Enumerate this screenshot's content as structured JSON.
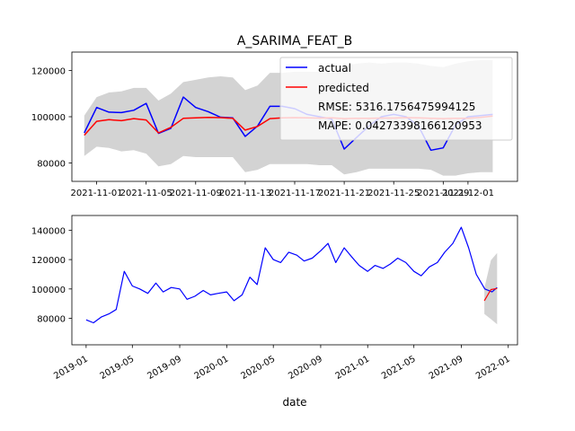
{
  "figure": {
    "title": "A_SARIMA_FEAT_B"
  },
  "chart_data": [
    {
      "type": "line",
      "title": "A_SARIMA_FEAT_B",
      "xlabel": "",
      "ylabel": "",
      "x_range": [
        "2021-10-30",
        "2021-12-05"
      ],
      "ylim": [
        72000,
        128000
      ],
      "x_ticks": [
        "2021-11-01",
        "2021-11-05",
        "2021-11-09",
        "2021-11-13",
        "2021-11-17",
        "2021-11-21",
        "2021-11-25",
        "2021-11-29",
        "2021-12-01"
      ],
      "y_ticks": [
        80000,
        100000,
        120000
      ],
      "y_tick_labels": [
        "80000",
        "100000",
        "120000"
      ],
      "grid": false,
      "legend": {
        "placement": "top-right",
        "entries": [
          {
            "label": "actual",
            "color": "#0000ff"
          },
          {
            "label": "predicted",
            "color": "#ff0000"
          },
          {
            "label": "RMSE: 5316.1756475994125",
            "color": ""
          },
          {
            "label": "MAPE: 0.042733981661209​53",
            "color": ""
          }
        ]
      },
      "x": [
        "2021-10-31",
        "2021-11-01",
        "2021-11-02",
        "2021-11-03",
        "2021-11-04",
        "2021-11-05",
        "2021-11-06",
        "2021-11-07",
        "2021-11-08",
        "2021-11-09",
        "2021-11-10",
        "2021-11-11",
        "2021-11-12",
        "2021-11-13",
        "2021-11-14",
        "2021-11-15",
        "2021-11-16",
        "2021-11-17",
        "2021-11-18",
        "2021-11-19",
        "2021-11-20",
        "2021-11-21",
        "2021-11-22",
        "2021-11-23",
        "2021-11-24",
        "2021-11-25",
        "2021-11-26",
        "2021-11-27",
        "2021-11-28",
        "2021-11-29",
        "2021-11-30",
        "2021-12-01",
        "2021-12-02",
        "2021-12-03"
      ],
      "series": [
        {
          "name": "actual",
          "color": "#0000ff",
          "values": [
            93000,
            104000,
            102000,
            101800,
            102800,
            105800,
            92800,
            95000,
            108500,
            104000,
            102200,
            99800,
            99500,
            91500,
            96000,
            104500,
            104500,
            103500,
            101000,
            100000,
            99000,
            86000,
            91000,
            96000,
            100000,
            101000,
            100000,
            96000,
            85500,
            86500,
            96500,
            100000,
            100500,
            101000
          ]
        },
        {
          "name": "predicted",
          "color": "#ff0000",
          "values": [
            92000,
            98000,
            98700,
            98300,
            99200,
            98600,
            93000,
            95400,
            99300,
            99500,
            99700,
            99600,
            99300,
            94200,
            95800,
            99200,
            99500,
            99600,
            99500,
            99400,
            99500,
            99200,
            99300,
            99300,
            99400,
            99400,
            99600,
            99500,
            99300,
            99200,
            99300,
            99300,
            99700,
            100300
          ]
        }
      ],
      "band": {
        "color": "#d3d3d3",
        "lower": [
          83000,
          87000,
          86500,
          85000,
          85500,
          84000,
          78500,
          79500,
          83000,
          82500,
          82500,
          82500,
          82500,
          76000,
          77000,
          79500,
          79500,
          79500,
          79500,
          79000,
          79000,
          75000,
          76000,
          77500,
          77500,
          77500,
          77500,
          77500,
          77000,
          74500,
          74500,
          75500,
          76000,
          76000
        ],
        "upper": [
          100500,
          108500,
          110500,
          111000,
          112500,
          112500,
          107000,
          110000,
          115000,
          116000,
          117000,
          117500,
          117000,
          111500,
          113500,
          119000,
          119000,
          119500,
          119500,
          119500,
          119000,
          122000,
          123000,
          123500,
          123000,
          123500,
          123500,
          123000,
          122000,
          121500,
          123000,
          124000,
          124500,
          124500
        ]
      }
    },
    {
      "type": "line",
      "title": "",
      "xlabel": "date",
      "ylabel": "",
      "x_range": [
        "2018-11-25",
        "2022-01-25"
      ],
      "ylim": [
        62000,
        150000
      ],
      "x_ticks": [
        "2019-01",
        "2019-05",
        "2019-09",
        "2020-01",
        "2020-05",
        "2020-09",
        "2021-01",
        "2021-05",
        "2021-09",
        "2022-01"
      ],
      "y_ticks": [
        80000,
        100000,
        120000,
        140000
      ],
      "y_tick_labels": [
        "80000",
        "100000",
        "120000",
        "140000"
      ],
      "grid": false,
      "series": [
        {
          "name": "actual",
          "color": "#0000ff",
          "x": [
            "2019-01-01",
            "2019-01-20",
            "2019-02-10",
            "2019-03-01",
            "2019-03-20",
            "2019-04-10",
            "2019-05-01",
            "2019-05-20",
            "2019-06-10",
            "2019-07-01",
            "2019-07-20",
            "2019-08-10",
            "2019-09-01",
            "2019-09-20",
            "2019-10-10",
            "2019-11-01",
            "2019-11-20",
            "2019-12-10",
            "2020-01-01",
            "2020-01-20",
            "2020-02-10",
            "2020-03-01",
            "2020-03-20",
            "2020-04-10",
            "2020-05-01",
            "2020-05-20",
            "2020-06-10",
            "2020-07-01",
            "2020-07-20",
            "2020-08-10",
            "2020-09-01",
            "2020-09-20",
            "2020-10-10",
            "2020-11-01",
            "2020-11-20",
            "2020-12-10",
            "2021-01-01",
            "2021-01-20",
            "2021-02-10",
            "2021-03-01",
            "2021-03-20",
            "2021-04-10",
            "2021-05-01",
            "2021-05-20",
            "2021-06-10",
            "2021-07-01",
            "2021-07-20",
            "2021-08-10",
            "2021-09-01",
            "2021-09-20",
            "2021-10-10",
            "2021-11-01",
            "2021-11-20",
            "2021-12-03"
          ],
          "values": [
            79000,
            77000,
            81000,
            83000,
            86000,
            112000,
            102000,
            100000,
            97000,
            104000,
            98000,
            101000,
            100000,
            93000,
            95000,
            99000,
            96000,
            97000,
            98000,
            92000,
            96000,
            108000,
            103000,
            128000,
            120000,
            118000,
            125000,
            123000,
            119000,
            121000,
            126000,
            131000,
            118000,
            128000,
            122000,
            116000,
            112000,
            116000,
            114000,
            117000,
            121000,
            118000,
            112000,
            109000,
            115000,
            118000,
            125000,
            131000,
            142000,
            128000,
            110000,
            100000,
            98000,
            101000
          ]
        },
        {
          "name": "predicted",
          "color": "#ff0000",
          "x": [
            "2021-10-31",
            "2021-11-17",
            "2021-12-03"
          ],
          "values": [
            92000,
            99600,
            100300
          ]
        }
      ],
      "band": {
        "color": "#d3d3d3",
        "x": [
          "2021-10-31",
          "2021-11-17",
          "2021-12-03"
        ],
        "lower": [
          83000,
          79500,
          76000
        ],
        "upper": [
          100500,
          119500,
          124500
        ]
      }
    }
  ]
}
